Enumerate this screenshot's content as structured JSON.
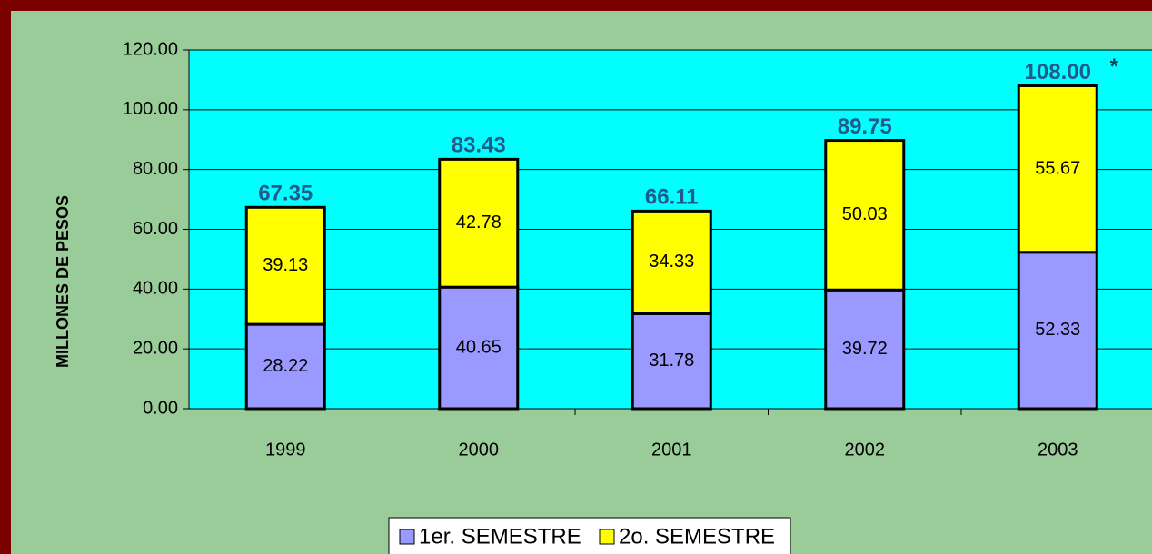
{
  "chart_data": {
    "type": "stacked_bar",
    "y_axis_label": "MILLONES DE PESOS",
    "categories": [
      "1999",
      "2000",
      "2001",
      "2002",
      "2003"
    ],
    "series": [
      {
        "name": "1er. SEMESTRE",
        "color": "#9999ff",
        "values": [
          28.22,
          40.65,
          31.78,
          39.72,
          52.33
        ]
      },
      {
        "name": "2o. SEMESTRE",
        "color": "#ffff00",
        "values": [
          39.13,
          42.78,
          34.33,
          50.03,
          55.67
        ]
      }
    ],
    "totals": [
      67.35,
      83.43,
      66.11,
      89.75,
      108.0
    ],
    "total_labels": [
      "67.35",
      "83.43",
      "66.11",
      "89.75",
      "108.00"
    ],
    "annotation": "*",
    "ylim": [
      0,
      120
    ],
    "yticks": [
      {
        "value": 0,
        "label": "0.00"
      },
      {
        "value": 20,
        "label": "20.00"
      },
      {
        "value": 40,
        "label": "40.00"
      },
      {
        "value": 60,
        "label": "60.00"
      },
      {
        "value": 80,
        "label": "80.00"
      },
      {
        "value": 100,
        "label": "100.00"
      },
      {
        "value": 120,
        "label": "120.00"
      }
    ],
    "grid": true,
    "legend": "bottom"
  }
}
